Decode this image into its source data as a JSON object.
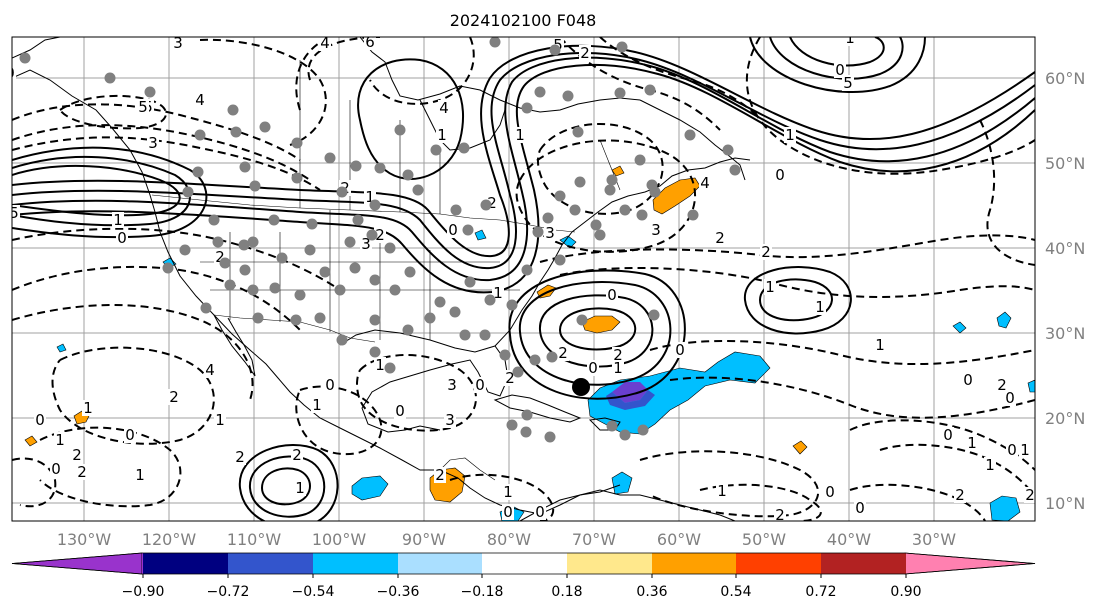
{
  "title": "2024102100 F048",
  "map": {
    "lon_labels": [
      "130°W",
      "120°W",
      "110°W",
      "100°W",
      "90°W",
      "80°W",
      "70°W",
      "60°W",
      "50°W",
      "40°W",
      "30°W"
    ],
    "lat_labels": [
      "60°N",
      "50°N",
      "40°N",
      "30°N",
      "20°N",
      "10°N"
    ],
    "contour_labels": [
      "4",
      "3",
      "5",
      "6",
      "4",
      "0",
      "5",
      "4",
      "5",
      "3",
      "2",
      "1",
      "0",
      "5",
      "2",
      "1",
      "4",
      "1",
      "0",
      "2",
      "1",
      "2",
      "3",
      "3",
      "2",
      "0",
      "0",
      "1",
      "2",
      "0",
      "1",
      "2",
      "2",
      "1",
      "4",
      "3",
      "2",
      "1",
      "0",
      "1",
      "2",
      "0",
      "2",
      "1",
      "0",
      "1",
      "5",
      "3",
      "0",
      "2",
      "4",
      "0",
      "1",
      "2",
      "1",
      "1",
      "0",
      "0",
      "2",
      "2",
      "1",
      "2",
      "0",
      "0",
      "1",
      "1",
      "2",
      "1",
      "0",
      "2",
      "0",
      "3",
      "1",
      "0",
      "0",
      "1",
      "0",
      "1",
      "0",
      "0",
      "2",
      "1",
      "1",
      "2"
    ]
  },
  "colorbar": {
    "tick_labels": [
      "−0.90",
      "−0.72",
      "−0.54",
      "−0.36",
      "−0.18",
      "0.18",
      "0.36",
      "0.54",
      "0.72",
      "0.90"
    ],
    "colors": [
      "#9933cc",
      "#000080",
      "#3355cc",
      "#00bfff",
      "#aadfff",
      "#ffffff",
      "#ffe88c",
      "#ffa000",
      "#ff4000",
      "#b22222",
      "#ff80b0"
    ]
  },
  "colors": {
    "neg_fill_light": "#00bfff",
    "neg_fill_mid": "#3355cc",
    "neg_fill_deep": "#7744cc",
    "pos_fill_light": "#ffe88c",
    "pos_fill_mid": "#ffa000",
    "station_dot": "#808080",
    "marker": "#000000"
  }
}
